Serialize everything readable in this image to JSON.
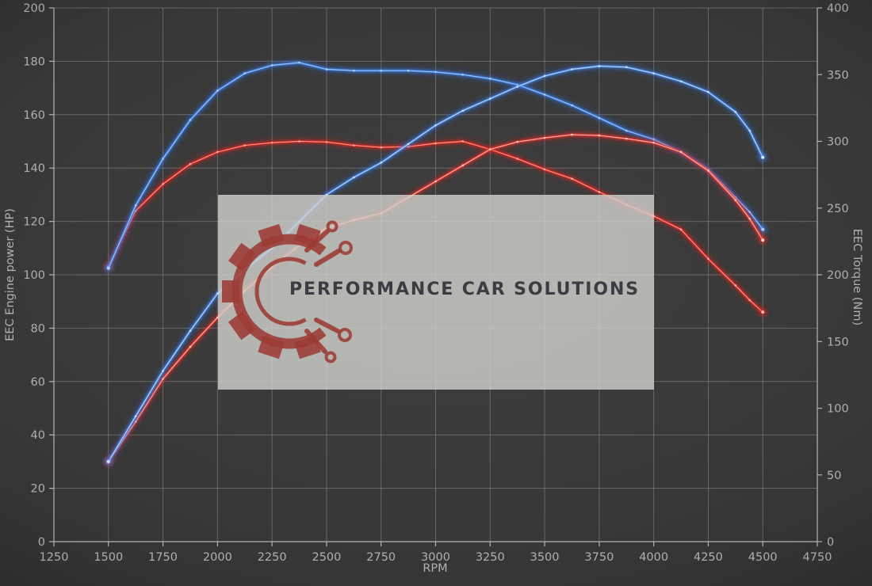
{
  "chart_data": {
    "type": "line",
    "title": "",
    "xlabel": "RPM",
    "ylabel_left": "EEC Engine power (HP)",
    "ylabel_right": "EEC Torque (Nm)",
    "x_axis": {
      "min": 1250,
      "max": 4750,
      "tick_step": 250
    },
    "y_left": {
      "min": 0,
      "max": 200,
      "tick_step": 20
    },
    "y_right": {
      "min": 0,
      "max": 400,
      "tick_step": 50
    },
    "grid": true,
    "legend_position": "none",
    "rpm": [
      1500,
      1625,
      1750,
      1875,
      2000,
      2125,
      2250,
      2375,
      2500,
      2625,
      2750,
      2875,
      3000,
      3125,
      3250,
      3375,
      3500,
      3625,
      3750,
      3875,
      4000,
      4125,
      4250,
      4375,
      4440,
      4500
    ],
    "series": [
      {
        "name": "power_blue_tuned",
        "axis": "left",
        "unit": "HP",
        "color": "#4a8ae8",
        "core": "#d9eaff",
        "glow": "#2b6fe0",
        "values": [
          30,
          47,
          64,
          79,
          93,
          102,
          110,
          120,
          130,
          136.5,
          142,
          149,
          156,
          161.5,
          166,
          170.5,
          174.5,
          177,
          178.2,
          177.8,
          175.5,
          172.5,
          168.5,
          161,
          154,
          144
        ]
      },
      {
        "name": "power_red_original",
        "axis": "left",
        "unit": "HP",
        "color": "#e8382e",
        "core": "#ffd8d0",
        "glow": "#d42420",
        "values": [
          30,
          45,
          61,
          73,
          84,
          94,
          103,
          111,
          117.5,
          120.5,
          123,
          129,
          135,
          141,
          147,
          149.8,
          151.3,
          152.5,
          152.2,
          151,
          149.5,
          146,
          139,
          128,
          121,
          113
        ]
      },
      {
        "name": "torque_blue_tuned",
        "axis": "right",
        "unit": "Nm",
        "color": "#3f82e6",
        "core": "#b8d6ff",
        "glow": "#2b6fe0",
        "values": [
          205,
          252,
          287,
          316,
          338,
          351,
          357,
          359,
          354,
          353,
          353,
          353,
          352,
          350,
          347,
          342.5,
          335,
          327,
          317.5,
          308,
          301.5,
          292,
          279,
          258,
          247,
          234
        ]
      },
      {
        "name": "torque_red_original",
        "axis": "right",
        "unit": "Nm",
        "color": "#e02a22",
        "core": "#ffb8ac",
        "glow": "#d42420",
        "values": [
          206,
          248,
          268,
          283,
          292,
          297,
          299,
          300,
          299.5,
          297,
          295.5,
          296,
          298.5,
          300,
          294,
          287,
          279,
          272,
          262,
          252.5,
          244,
          234,
          212,
          192,
          181,
          172
        ]
      }
    ]
  },
  "watermark": {
    "text": "PERFORMANCE CAR SOLUTIONS",
    "panel_color": "rgba(207,207,202,0.82)",
    "logo_color": "#9c3b34",
    "text_color": "#3a3d42"
  },
  "colors": {
    "background_center": "#3e3e3e",
    "background_edge": "#252525",
    "grid": "#a0a0a0",
    "axis": "#b5b5b5",
    "tick_text": "#b0b0b0"
  }
}
